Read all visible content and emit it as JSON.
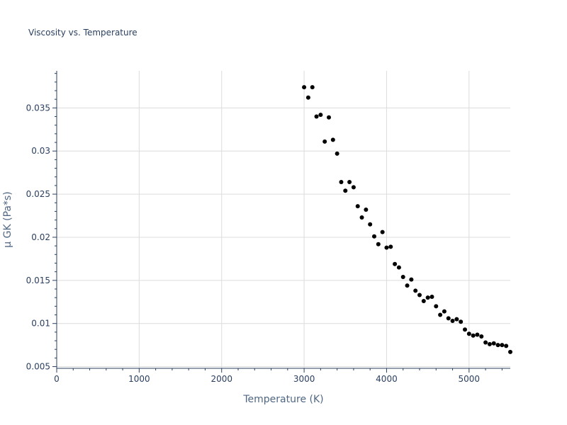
{
  "chart_data": {
    "type": "scatter",
    "title": "Viscosity vs. Temperature",
    "xlabel": "Temperature (K)",
    "ylabel": "μ GK (Pa*s)",
    "xlim": [
      0,
      5500
    ],
    "ylim": [
      0.0048,
      0.0393
    ],
    "x_ticks": [
      0,
      1000,
      2000,
      3000,
      4000,
      5000
    ],
    "x_tick_labels": [
      "0",
      "1000",
      "2000",
      "3000",
      "4000",
      "5000"
    ],
    "y_ticks": [
      0.005,
      0.01,
      0.015,
      0.02,
      0.025,
      0.03,
      0.035
    ],
    "y_tick_labels": [
      "0.005",
      "0.01",
      "0.015",
      "0.02",
      "0.025",
      "0.03",
      "0.035"
    ],
    "grid": true,
    "marker_color": "#000000",
    "series": [
      {
        "name": "μ GK",
        "x": [
          3000,
          3050,
          3100,
          3150,
          3200,
          3250,
          3300,
          3350,
          3400,
          3450,
          3500,
          3550,
          3600,
          3650,
          3700,
          3750,
          3800,
          3850,
          3900,
          3950,
          4000,
          4050,
          4100,
          4150,
          4200,
          4250,
          4300,
          4350,
          4400,
          4450,
          4500,
          4550,
          4600,
          4650,
          4700,
          4750,
          4800,
          4850,
          4900,
          4950,
          5000,
          5050,
          5100,
          5150,
          5200,
          5250,
          5300,
          5350,
          5400,
          5450,
          5500
        ],
        "y": [
          0.0374,
          0.0362,
          0.0374,
          0.034,
          0.0342,
          0.0311,
          0.0339,
          0.0313,
          0.0297,
          0.0264,
          0.0254,
          0.0264,
          0.0258,
          0.0236,
          0.0223,
          0.0232,
          0.0215,
          0.0201,
          0.0192,
          0.0206,
          0.0188,
          0.0189,
          0.0169,
          0.0165,
          0.0154,
          0.0144,
          0.0151,
          0.0138,
          0.0133,
          0.0126,
          0.013,
          0.0131,
          0.012,
          0.011,
          0.0114,
          0.0106,
          0.0103,
          0.0105,
          0.0102,
          0.0093,
          0.0088,
          0.0086,
          0.0087,
          0.0085,
          0.0078,
          0.0076,
          0.0077,
          0.0075,
          0.0075,
          0.0074,
          0.0067
        ]
      }
    ]
  }
}
